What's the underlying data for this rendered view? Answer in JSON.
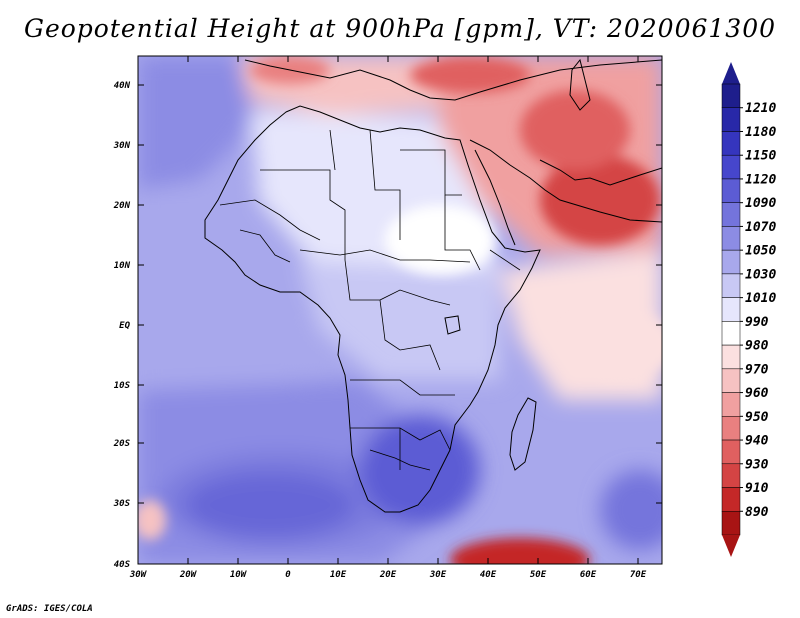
{
  "title": "Geopotential Height at 900hPa [gpm], VT: 2020061300",
  "credit": "GrADS: IGES/COLA",
  "lat_labels": [
    "40N",
    "30N",
    "20N",
    "10N",
    "EQ",
    "10S",
    "20S",
    "30S",
    "40S"
  ],
  "lon_labels": [
    "30W",
    "20W",
    "10W",
    "0",
    "10E",
    "20E",
    "30E",
    "40E",
    "50E",
    "60E",
    "70E"
  ],
  "colorbar": {
    "labels": [
      "1210",
      "1180",
      "1150",
      "1120",
      "1090",
      "1070",
      "1050",
      "1030",
      "1010",
      "990",
      "980",
      "970",
      "960",
      "950",
      "940",
      "930",
      "910",
      "890"
    ],
    "colors": [
      "#1e1e8c",
      "#2828a8",
      "#3535be",
      "#4646cc",
      "#5c5cd4",
      "#7474dc",
      "#8c8ce4",
      "#a8a8ec",
      "#c8c8f4",
      "#e6e6fc",
      "#ffffff",
      "#fbe0e0",
      "#f6c2c2",
      "#f0a0a0",
      "#e98080",
      "#e06060",
      "#d44444",
      "#c42828",
      "#a81414"
    ]
  },
  "colors": {
    "ocean_deep": "#6c6cdc",
    "ocean_mid": "#8c8ce4",
    "land_light": "#e6e6fc",
    "hot_red": "#d44444",
    "border": "#000000"
  }
}
